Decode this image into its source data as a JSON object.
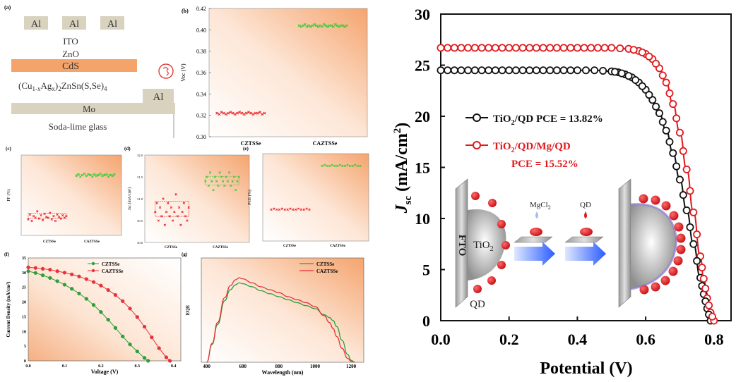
{
  "left": {
    "panel_a": {
      "tag": "(a)",
      "al_top": [
        "Al",
        "Al",
        "Al"
      ],
      "ito": "ITO",
      "zno": "ZnO",
      "cds": "CdS",
      "absorber_html": "(Cu<tspan dy='3' font-size='9'>1-x</tspan><tspan dy='-3'>Ag</tspan><tspan dy='3' font-size='9'>x</tspan><tspan dy='-3'>)</tspan><tspan dy='3' font-size='9'>2</tspan><tspan dy='-3'>ZnSn(S,Se)</tspan><tspan dy='3' font-size='9'>4</tspan>",
      "al_right": "Al",
      "mo": "Mo",
      "glass": "Soda-lime glass"
    },
    "panel_b": {
      "tag": "(b)",
      "ylabel": "Voc (V)",
      "yticks": [
        "0.42",
        "0.40",
        "0.38",
        "0.36",
        "0.34",
        "0.32",
        "0.30"
      ],
      "categories": [
        "CZTSSe",
        "CAZTSSe"
      ]
    },
    "panel_c": {
      "tag": "(c)",
      "ylabel": "FF (%)",
      "categories": [
        "CZTSSe",
        "CAZTSSe"
      ]
    },
    "panel_d": {
      "tag": "(d)",
      "ylabel": "Jsc (mA/cm²)",
      "yticks": [
        "32.0",
        "31.5",
        "31.0",
        "30.5",
        "30.0"
      ],
      "categories": [
        "CZTSSe",
        "CAZTSSe"
      ]
    },
    "panel_e": {
      "tag": "(e)",
      "ylabel": "PCE (%)",
      "categories": [
        "CZTSSe",
        "CAZTSSe"
      ]
    },
    "panel_f": {
      "tag": "(f)",
      "xlabel": "Voltage (V)",
      "ylabel": "Current Density (mA/cm²)",
      "xticks": [
        "0.0",
        "0.1",
        "0.2",
        "0.3",
        "0.4"
      ],
      "yticks": [
        "0",
        "5",
        "10",
        "15",
        "20",
        "25",
        "30",
        "35"
      ],
      "legend": [
        "CZTSSe",
        "CAZTSSe"
      ]
    },
    "panel_g": {
      "tag": "(g)",
      "xlabel": "Wavelength (nm)",
      "ylabel": "EQE",
      "xticks": [
        "400",
        "600",
        "800",
        "1000",
        "1200"
      ],
      "legend": [
        "CZTSSe",
        "CAZTSSe"
      ]
    }
  },
  "chart_data": [
    {
      "type": "scatter",
      "panel": "b",
      "ylabel": "Voc (V)",
      "categories": [
        "CZTSSe",
        "CAZTSSe"
      ],
      "ylim": [
        0.3,
        0.42
      ],
      "series": [
        {
          "name": "CZTSSe",
          "color": "#e8222a",
          "y": [
            0.322,
            0.321,
            0.323,
            0.322,
            0.321,
            0.322,
            0.323,
            0.322,
            0.321,
            0.322,
            0.323,
            0.322,
            0.321,
            0.322,
            0.323,
            0.322,
            0.321,
            0.322,
            0.322,
            0.323,
            0.321,
            0.322
          ]
        },
        {
          "name": "CAZTSSe",
          "color": "#3ec93a",
          "y": [
            0.404,
            0.403,
            0.404,
            0.405,
            0.403,
            0.404,
            0.403,
            0.404,
            0.405,
            0.404,
            0.403,
            0.404,
            0.403,
            0.405,
            0.404,
            0.403,
            0.404,
            0.404,
            0.403,
            0.405,
            0.404,
            0.403,
            0.404,
            0.404,
            0.403,
            0.404
          ]
        }
      ]
    },
    {
      "type": "scatter",
      "panel": "c",
      "ylabel": "FF (%)",
      "categories": [
        "CZTSSe",
        "CAZTSSe"
      ],
      "ylim": [
        0,
        1
      ],
      "series": [
        {
          "name": "CZTSSe",
          "color": "#e8222a",
          "y": [
            0.2,
            0.26,
            0.18,
            0.24,
            0.22,
            0.3,
            0.21,
            0.25,
            0.19,
            0.27,
            0.23,
            0.22,
            0.28,
            0.2,
            0.24,
            0.18,
            0.26,
            0.23,
            0.21,
            0.25,
            0.22,
            0.24
          ]
        },
        {
          "name": "CAZTSSe",
          "color": "#3ec93a",
          "y": [
            0.74,
            0.76,
            0.73,
            0.75,
            0.77,
            0.74,
            0.76,
            0.75,
            0.73,
            0.76,
            0.74,
            0.75,
            0.77,
            0.74,
            0.75,
            0.76,
            0.73,
            0.75,
            0.74,
            0.76
          ]
        }
      ]
    },
    {
      "type": "scatter",
      "panel": "d",
      "ylabel": "Jsc (mA/cm²)",
      "categories": [
        "CZTSSe",
        "CAZTSSe"
      ],
      "ylim": [
        30.0,
        32.0
      ],
      "series": [
        {
          "name": "CZTSSe",
          "color": "#e8222a",
          "y": [
            30.7,
            30.9,
            30.5,
            30.8,
            30.6,
            31.0,
            30.4,
            30.7,
            30.9,
            30.6,
            30.8,
            30.5,
            30.7,
            31.1,
            30.6,
            30.8,
            30.4,
            30.7,
            30.9,
            30.6,
            30.5,
            30.8
          ]
        },
        {
          "name": "CAZTSSe",
          "color": "#3ec93a",
          "y": [
            31.4,
            31.5,
            31.3,
            31.6,
            31.4,
            31.2,
            31.5,
            31.4,
            31.3,
            31.6,
            31.5,
            31.4,
            31.3,
            31.5,
            31.4,
            31.6,
            31.3,
            31.4,
            31.5,
            31.2,
            31.4,
            31.5
          ]
        }
      ]
    },
    {
      "type": "scatter",
      "panel": "e",
      "ylabel": "PCE (%)",
      "categories": [
        "CZTSSe",
        "CAZTSSe"
      ],
      "ylim": [
        0,
        1
      ],
      "series": [
        {
          "name": "CZTSSe",
          "color": "#e8222a",
          "y": [
            0.36,
            0.37,
            0.36,
            0.36,
            0.37,
            0.36,
            0.36,
            0.37,
            0.36,
            0.36,
            0.37,
            0.36,
            0.36,
            0.37,
            0.36
          ]
        },
        {
          "name": "CAZTSSe",
          "color": "#3ec93a",
          "y": [
            0.86,
            0.87,
            0.86,
            0.86,
            0.87,
            0.86,
            0.86,
            0.87,
            0.86,
            0.86,
            0.87,
            0.86,
            0.86,
            0.87,
            0.86,
            0.86
          ]
        }
      ]
    },
    {
      "type": "line",
      "panel": "f",
      "xlabel": "Voltage (V)",
      "ylabel": "Current Density (mA/cm²)",
      "xlim": [
        0,
        0.42
      ],
      "ylim": [
        0,
        35
      ],
      "series": [
        {
          "name": "CZTSSe",
          "color": "#2e9d3a",
          "x": [
            0.0,
            0.02,
            0.04,
            0.06,
            0.08,
            0.1,
            0.12,
            0.14,
            0.16,
            0.18,
            0.2,
            0.22,
            0.24,
            0.26,
            0.28,
            0.3,
            0.32,
            0.33
          ],
          "y": [
            30.5,
            29.9,
            29.1,
            28.2,
            27.1,
            25.9,
            24.5,
            22.9,
            21.1,
            19.0,
            16.6,
            14.0,
            11.2,
            8.3,
            5.6,
            3.2,
            1.0,
            0.0
          ]
        },
        {
          "name": "CAZTSSe",
          "color": "#e8323a",
          "x": [
            0.0,
            0.02,
            0.04,
            0.06,
            0.08,
            0.1,
            0.12,
            0.14,
            0.16,
            0.18,
            0.2,
            0.22,
            0.24,
            0.26,
            0.28,
            0.3,
            0.32,
            0.34,
            0.36,
            0.38,
            0.39
          ],
          "y": [
            31.8,
            31.6,
            31.3,
            31.0,
            30.5,
            30.0,
            29.4,
            28.7,
            27.8,
            26.8,
            25.6,
            24.1,
            22.4,
            20.3,
            17.8,
            14.9,
            11.6,
            8.0,
            4.3,
            1.2,
            0.0
          ]
        }
      ]
    },
    {
      "type": "line",
      "panel": "g",
      "xlabel": "Wavelength (nm)",
      "ylabel": "EQE",
      "xlim": [
        370,
        1270
      ],
      "ylim": [
        0,
        1.05
      ],
      "series": [
        {
          "name": "CZTSSe",
          "color": "#2e9d3a",
          "x": [
            400,
            430,
            460,
            500,
            530,
            560,
            580,
            600,
            650,
            700,
            750,
            800,
            850,
            900,
            950,
            1000,
            1050,
            1080,
            1100,
            1120,
            1150,
            1180,
            1200,
            1220
          ],
          "y": [
            0.0,
            0.18,
            0.38,
            0.62,
            0.73,
            0.78,
            0.8,
            0.79,
            0.76,
            0.72,
            0.69,
            0.66,
            0.63,
            0.6,
            0.57,
            0.54,
            0.48,
            0.45,
            0.42,
            0.36,
            0.22,
            0.08,
            0.02,
            0.0
          ]
        },
        {
          "name": "CAZTSSe",
          "color": "#e8323a",
          "x": [
            400,
            430,
            460,
            500,
            530,
            560,
            580,
            600,
            650,
            700,
            750,
            800,
            850,
            900,
            950,
            1000,
            1050,
            1080,
            1100,
            1120,
            1150,
            1180,
            1200,
            1220
          ],
          "y": [
            0.0,
            0.19,
            0.4,
            0.65,
            0.77,
            0.83,
            0.85,
            0.84,
            0.8,
            0.76,
            0.73,
            0.7,
            0.66,
            0.63,
            0.6,
            0.56,
            0.47,
            0.4,
            0.34,
            0.26,
            0.14,
            0.04,
            0.01,
            0.0
          ]
        }
      ]
    },
    {
      "type": "line",
      "panel": "main",
      "xlabel": "Potential (V)",
      "ylabel": "Jsc (mA/cm2)",
      "xlim": [
        0.0,
        0.85
      ],
      "ylim": [
        0,
        30
      ],
      "xticks": [
        "0.0",
        "0.2",
        "0.4",
        "0.6",
        "0.8"
      ],
      "yticks": [
        "0",
        "5",
        "10",
        "15",
        "20",
        "25",
        "30"
      ],
      "series": [
        {
          "name": "TiO2/QD PCE = 13.82%",
          "color": "#111111",
          "x": [
            0.0,
            0.1,
            0.2,
            0.3,
            0.4,
            0.45,
            0.5,
            0.52,
            0.54,
            0.56,
            0.58,
            0.6,
            0.62,
            0.64,
            0.66,
            0.68,
            0.7,
            0.72,
            0.74,
            0.76,
            0.77,
            0.78,
            0.79
          ],
          "y": [
            24.5,
            24.5,
            24.5,
            24.5,
            24.5,
            24.5,
            24.4,
            24.3,
            24.1,
            23.8,
            23.3,
            22.6,
            21.6,
            20.3,
            18.6,
            16.4,
            13.8,
            10.8,
            7.5,
            4.2,
            2.6,
            1.2,
            0.0
          ]
        },
        {
          "name": "TiO2/QD/Mg/QD PCE = 15.52%",
          "color": "#e0191d",
          "x": [
            0.0,
            0.1,
            0.2,
            0.3,
            0.4,
            0.5,
            0.55,
            0.58,
            0.6,
            0.62,
            0.64,
            0.66,
            0.68,
            0.7,
            0.72,
            0.74,
            0.76,
            0.77,
            0.78,
            0.79,
            0.8
          ],
          "y": [
            26.7,
            26.7,
            26.7,
            26.7,
            26.7,
            26.7,
            26.6,
            26.4,
            26.1,
            25.6,
            24.7,
            23.3,
            21.2,
            18.4,
            14.8,
            10.6,
            6.3,
            4.1,
            2.2,
            0.8,
            0.0
          ]
        }
      ]
    }
  ],
  "main": {
    "xlabel": "Potential (V)",
    "ylabel_main": "J",
    "ylabel_sub": "sc",
    "ylabel_unit": " (mA/cm",
    "ylabel_sup": "2",
    "ylabel_close": ")",
    "legend": [
      {
        "prefix": "TiO",
        "sub": "2",
        "rest": "/QD PCE = 13.82%"
      },
      {
        "prefix": "TiO",
        "sub": "2",
        "rest": "/QD/Mg/QD"
      },
      {
        "prefix": "",
        "sub": "",
        "rest": "PCE = 15.52%"
      }
    ],
    "inset": {
      "fto": "FTO",
      "tio2": "TiO",
      "tio2_sub": "2",
      "qd": "QD",
      "mgcl2": "MgCl",
      "mgcl2_sub": "2",
      "qd_top": "QD"
    }
  },
  "colors": {
    "red": "#e0191d",
    "green": "#3ec93a",
    "black": "#111111",
    "orange": "#f4a36a",
    "layer_beige": "#d9d2bf",
    "cds": "#f4a36a"
  }
}
